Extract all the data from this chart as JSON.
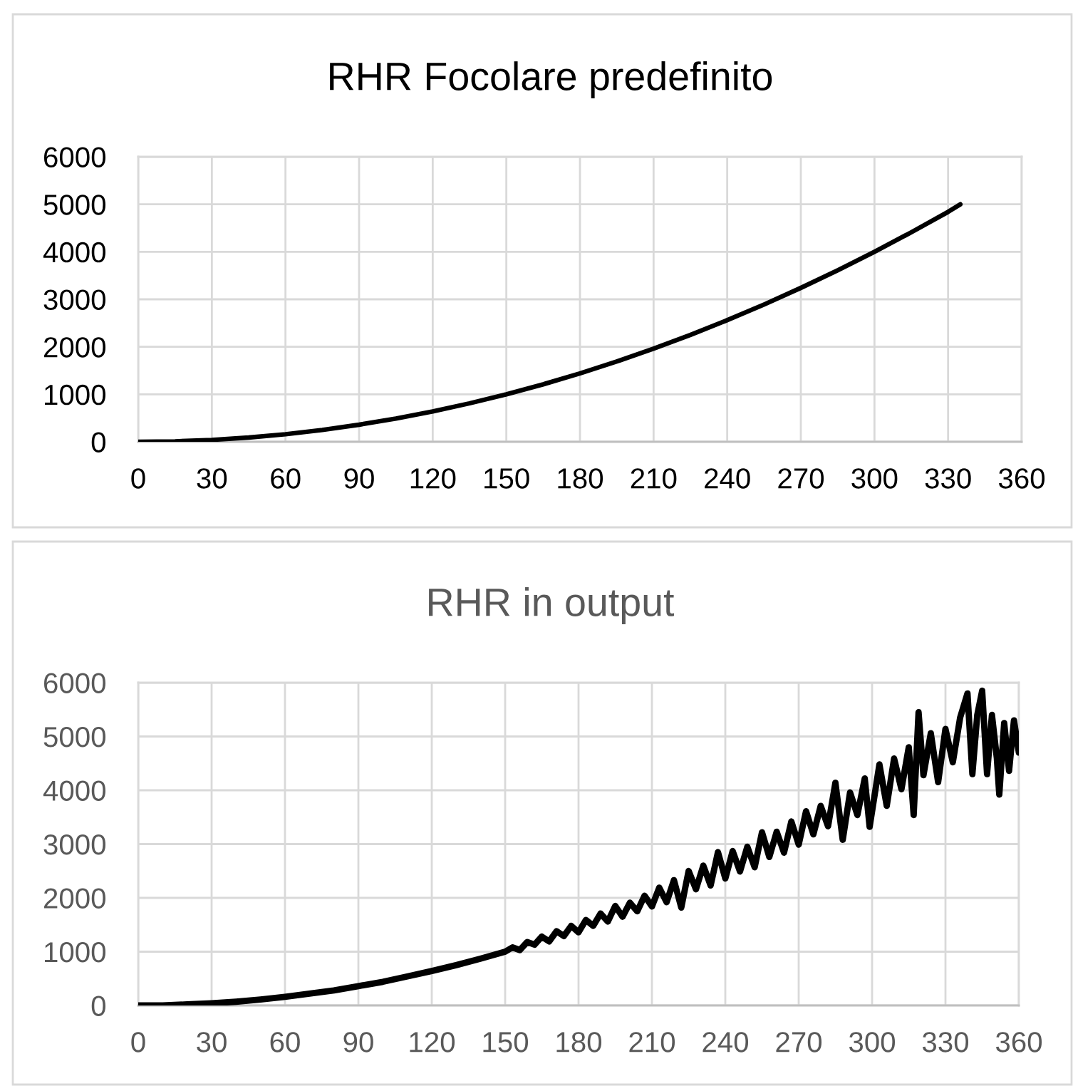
{
  "chart_data": [
    {
      "type": "line",
      "title": "RHR Focolare predefinito",
      "x": [
        0,
        15,
        30,
        45,
        60,
        75,
        90,
        105,
        120,
        135,
        150,
        165,
        180,
        195,
        210,
        225,
        240,
        255,
        270,
        285,
        300,
        315,
        330,
        335
      ],
      "series": [
        {
          "color": "#000000",
          "values": [
            0,
            10,
            40,
            90,
            160,
            250,
            360,
            490,
            640,
            810,
            1000,
            1210,
            1440,
            1690,
            1960,
            2250,
            2560,
            2890,
            3240,
            3610,
            4000,
            4410,
            4840,
            5000
          ]
        }
      ],
      "xlim": [
        0,
        360
      ],
      "xticks": [
        0,
        30,
        60,
        90,
        120,
        150,
        180,
        210,
        240,
        270,
        300,
        330,
        360
      ],
      "ylim": [
        0,
        6000
      ],
      "yticks": [
        0,
        1000,
        2000,
        3000,
        4000,
        5000,
        6000
      ],
      "grid": true
    },
    {
      "type": "line",
      "title": "RHR in output",
      "x": [
        0,
        10,
        20,
        30,
        40,
        50,
        60,
        70,
        80,
        90,
        100,
        110,
        120,
        130,
        140,
        150,
        153,
        156,
        159,
        162,
        165,
        168,
        171,
        174,
        177,
        180,
        183,
        186,
        189,
        192,
        195,
        198,
        201,
        204,
        207,
        210,
        213,
        216,
        219,
        222,
        225,
        228,
        231,
        234,
        237,
        240,
        243,
        246,
        249,
        252,
        255,
        258,
        261,
        264,
        267,
        270,
        273,
        276,
        279,
        282,
        285,
        288,
        291,
        294,
        297,
        299,
        303,
        306,
        309,
        312,
        315,
        317,
        319,
        321,
        324,
        327,
        330,
        333,
        336,
        339,
        341,
        343,
        345,
        347,
        349,
        351,
        352,
        354,
        356,
        358,
        360
      ],
      "series": [
        {
          "color": "#000000",
          "values": [
            0,
            0,
            20,
            40,
            70,
            110,
            160,
            220,
            280,
            360,
            440,
            540,
            640,
            750,
            870,
            1000,
            1080,
            1030,
            1180,
            1130,
            1280,
            1190,
            1380,
            1290,
            1480,
            1360,
            1590,
            1480,
            1710,
            1560,
            1850,
            1650,
            1910,
            1750,
            2040,
            1840,
            2190,
            1920,
            2330,
            1820,
            2500,
            2160,
            2600,
            2230,
            2850,
            2360,
            2870,
            2490,
            2950,
            2570,
            3220,
            2760,
            3230,
            2840,
            3420,
            2990,
            3610,
            3180,
            3710,
            3330,
            4140,
            3080,
            3960,
            3540,
            4220,
            3320,
            4480,
            3710,
            4590,
            4020,
            4800,
            3540,
            5450,
            4280,
            5060,
            4150,
            5140,
            4520,
            5350,
            5800,
            4300,
            5400,
            5850,
            4300,
            5400,
            4600,
            3920,
            5250,
            4360,
            5300,
            4700
          ]
        }
      ],
      "xlim": [
        0,
        360
      ],
      "xticks": [
        0,
        30,
        60,
        90,
        120,
        150,
        180,
        210,
        240,
        270,
        300,
        330,
        360
      ],
      "ylim": [
        0,
        6000
      ],
      "yticks": [
        0,
        1000,
        2000,
        3000,
        4000,
        5000,
        6000
      ],
      "grid": true
    }
  ]
}
